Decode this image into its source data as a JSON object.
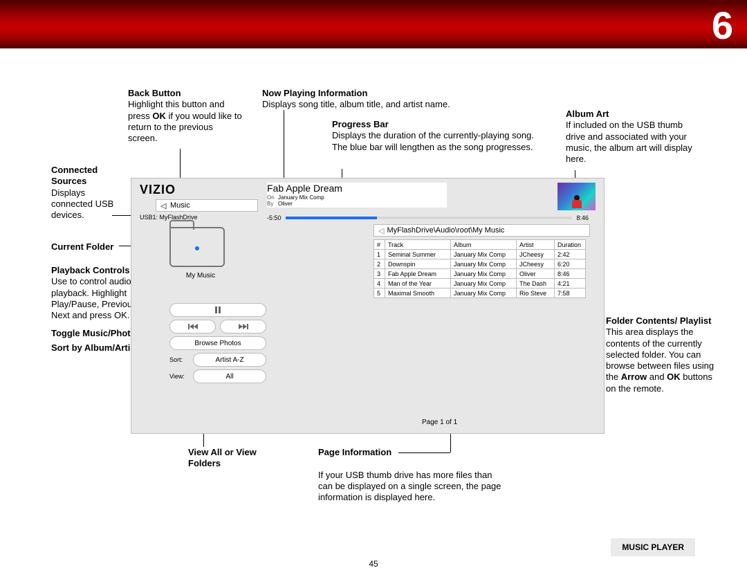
{
  "chapter_number": "6",
  "page_number": "45",
  "footer_label": "MUSIC PLAYER",
  "callouts": {
    "back_button": {
      "title": "Back Button",
      "body_html": "Highlight this button and press <b>OK</b> if you would like to return to the previous screen."
    },
    "connected_sources": {
      "title": "Connected Sources",
      "body": "Displays connected USB devices."
    },
    "current_folder": {
      "title": "Current Folder"
    },
    "playback_controls": {
      "title": "Playback Controls",
      "body": "Use to control audio playback. Highlight Play/Pause, Previous, or Next and press OK."
    },
    "toggle": {
      "title": "Toggle Music/Photos"
    },
    "sort": {
      "title": "Sort by Album/Artist/ Track"
    },
    "view_all": {
      "title": "View All or View Folders"
    },
    "now_playing": {
      "title": "Now Playing Information",
      "body": "Displays song title, album title, and artist name."
    },
    "progress": {
      "title": "Progress Bar",
      "body": "Displays the duration of the currently-playing song. The blue bar will lengthen as the song progresses."
    },
    "album_art": {
      "title": "Album Art",
      "body": "If included on the USB thumb drive and associated with your music, the album art will display here."
    },
    "page_info": {
      "title": "Page Information",
      "body": "If your USB thumb drive has more files than can be displayed on a single screen, the page information is displayed here."
    },
    "folder_contents": {
      "title": "Folder Contents/ Playlist",
      "body_html": "This area displays the contents of the currently selected folder. You can browse between files using the <b>Arrow</b> and <b>OK</b> buttons on the remote."
    }
  },
  "device": {
    "brand": "VIZIO",
    "breadcrumb": "Music",
    "connected_source": "USB1: MyFlashDrive",
    "current_folder": "My Music",
    "playback": {
      "browse_label": "Browse Photos",
      "sort_label": "Sort:",
      "sort_value": "Artist A-Z",
      "view_label": "View:",
      "view_value": "All"
    },
    "now_playing": {
      "title": "Fab Apple Dream",
      "album_key": "On",
      "album": "January Mix Comp",
      "artist_key": "By",
      "artist": "Oliver"
    },
    "progress": {
      "elapsed": "-5:50",
      "total": "8:46",
      "fill_pct": 32,
      "fill_color": "#1f6fe5",
      "track_color": "#d7d7d7"
    },
    "path": "MyFlashDrive\\Audio\\root\\My Music",
    "table": {
      "columns": [
        "#",
        "Track",
        "Album",
        "Artist",
        "Duration"
      ],
      "rows": [
        [
          "1",
          "Seminal Summer",
          "January Mix Comp",
          "JCheesy",
          "2:42"
        ],
        [
          "2",
          "Downspin",
          "January Mix Comp",
          "JCheesy",
          "6:20"
        ],
        [
          "3",
          "Fab Apple Dream",
          "January Mix Comp",
          "Oliver",
          "8:46"
        ],
        [
          "4",
          "Man of the Year",
          "January Mix Comp",
          "The Dash",
          "4:21"
        ],
        [
          "5",
          "Maximal Smooth",
          "January Mix Comp",
          "Rio Steve",
          "7:58"
        ]
      ]
    },
    "page_info": "Page 1 of 1"
  }
}
